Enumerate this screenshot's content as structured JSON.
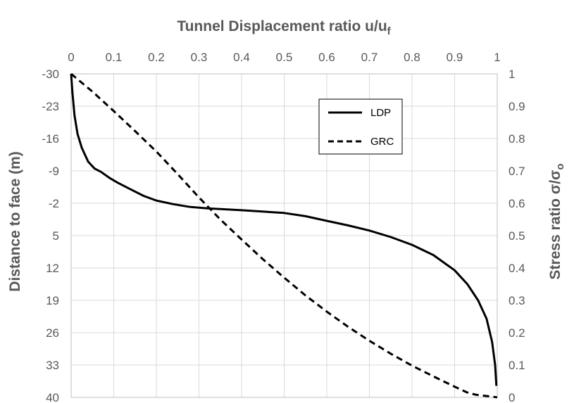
{
  "chart_data": {
    "type": "line",
    "title": "",
    "x_axis": {
      "label_main": "Tunnel Displacement ratio u/u",
      "label_sub": "f",
      "position": "top",
      "range": [
        0,
        1
      ],
      "ticks": [
        "0",
        "0.1",
        "0.2",
        "0.3",
        "0.4",
        "0.5",
        "0.6",
        "0.7",
        "0.8",
        "0.9",
        "1"
      ]
    },
    "y_axis_left": {
      "label": "Distance to face (m)",
      "range": [
        -30,
        40
      ],
      "inverted": true,
      "ticks": [
        "-30",
        "-23",
        "-16",
        "-9",
        "-2",
        "5",
        "12",
        "19",
        "26",
        "33",
        "40"
      ]
    },
    "y_axis_right": {
      "label_main": "Stress ratio σ/σ",
      "label_sub": "o",
      "range": [
        0,
        1
      ],
      "ticks": [
        "1",
        "0.9",
        "0.8",
        "0.7",
        "0.6",
        "0.5",
        "0.4",
        "0.3",
        "0.2",
        "0.1",
        "0"
      ]
    },
    "grid": true,
    "legend": {
      "position": "top-right"
    },
    "series": [
      {
        "name": "LDP",
        "axis": "left",
        "style": "solid",
        "color": "#000000",
        "x": [
          0,
          0.003,
          0.008,
          0.015,
          0.025,
          0.04,
          0.055,
          0.07,
          0.09,
          0.11,
          0.14,
          0.17,
          0.2,
          0.24,
          0.28,
          0.32,
          0.4,
          0.5,
          0.55,
          0.6,
          0.65,
          0.7,
          0.75,
          0.8,
          0.85,
          0.9,
          0.93,
          0.955,
          0.975,
          0.988,
          0.995,
          0.998
        ],
        "y": [
          -30,
          -26,
          -21,
          -17,
          -14,
          -11,
          -9.5,
          -8.8,
          -7.5,
          -6.4,
          -5,
          -3.6,
          -2.6,
          -1.8,
          -1.2,
          -0.9,
          -0.5,
          0.1,
          0.8,
          1.8,
          2.8,
          3.9,
          5.3,
          7,
          9.2,
          12.5,
          15.5,
          19,
          23,
          28,
          33,
          37.5
        ]
      },
      {
        "name": "GRC",
        "axis": "right",
        "style": "dashed",
        "color": "#000000",
        "x": [
          0,
          0.05,
          0.1,
          0.15,
          0.2,
          0.25,
          0.3,
          0.35,
          0.4,
          0.45,
          0.5,
          0.55,
          0.6,
          0.65,
          0.7,
          0.75,
          0.8,
          0.85,
          0.9,
          0.93,
          0.95,
          0.97,
          0.99,
          1
        ],
        "y": [
          1,
          0.945,
          0.885,
          0.823,
          0.76,
          0.69,
          0.618,
          0.55,
          0.488,
          0.427,
          0.37,
          0.315,
          0.265,
          0.218,
          0.175,
          0.135,
          0.098,
          0.065,
          0.033,
          0.015,
          0.008,
          0.005,
          0.002,
          0
        ]
      }
    ]
  }
}
